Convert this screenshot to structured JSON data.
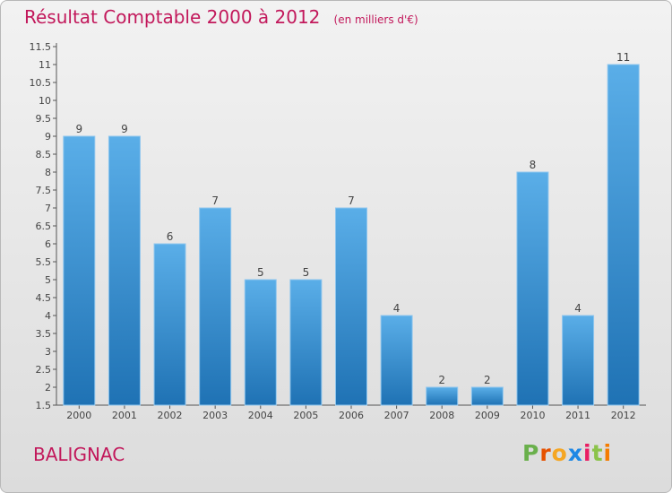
{
  "header": {
    "title": "Résultat Comptable 2000 à 2012",
    "unit": "(en milliers d'€)"
  },
  "footer": {
    "commune": "BALIGNAC",
    "logo_letters": [
      "P",
      "r",
      "o",
      "x",
      "i",
      "t",
      "i"
    ]
  },
  "colors": {
    "title": "#c2185b",
    "bar_top": "#5aaee8",
    "bar_bottom": "#1f72b4"
  },
  "chart_data": {
    "type": "bar",
    "title": "Résultat Comptable 2000 à 2012",
    "subtitle": "(en milliers d'€)",
    "categories": [
      "2000",
      "2001",
      "2002",
      "2003",
      "2004",
      "2005",
      "2006",
      "2007",
      "2008",
      "2009",
      "2010",
      "2011",
      "2012"
    ],
    "values": [
      9,
      9,
      6,
      7,
      5,
      5,
      7,
      4,
      2,
      2,
      8,
      4,
      11
    ],
    "ylim": [
      1.5,
      11.5
    ],
    "yticks": [
      1.5,
      2,
      2.5,
      3,
      3.5,
      4,
      4.5,
      5,
      5.5,
      6,
      6.5,
      7,
      7.5,
      8,
      8.5,
      9,
      9.5,
      10,
      10.5,
      11,
      11.5
    ],
    "grid": false,
    "xlabel": "",
    "ylabel": ""
  }
}
